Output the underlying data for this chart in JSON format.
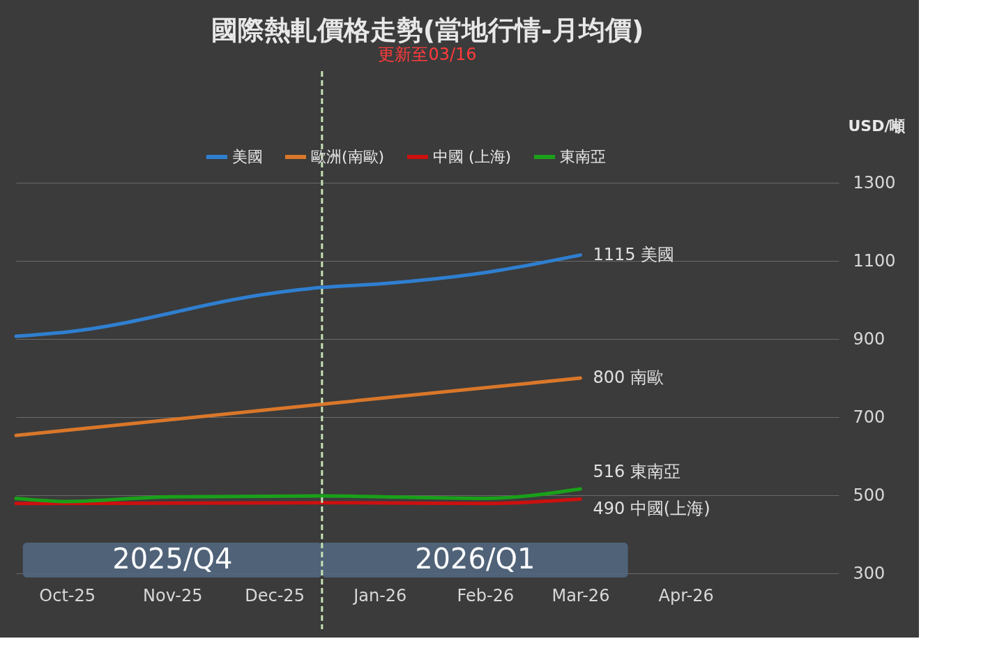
{
  "chart_data": {
    "type": "line",
    "title": "國際熱軋價格走勢(當地行情-月均價)",
    "subtitle": "更新至03/16",
    "ylabel": "USD/噸",
    "xlim": [
      "2025-09-16",
      "2026-05-16"
    ],
    "xticks": [
      {
        "value": "2025-10",
        "label": "Oct-25"
      },
      {
        "value": "2025-11",
        "label": "Nov-25"
      },
      {
        "value": "2025-12",
        "label": "Dec-25"
      },
      {
        "value": "2026-01",
        "label": "Jan-26"
      },
      {
        "value": "2026-02",
        "label": "Feb-26"
      },
      {
        "value": "2026-03",
        "label": "Mar-26"
      },
      {
        "value": "2026-04",
        "label": "Apr-26"
      }
    ],
    "ylim": [
      300,
      1300
    ],
    "yticks": [
      300,
      500,
      700,
      900,
      1100,
      1300
    ],
    "grid": "y",
    "legend": "top",
    "marker": "none",
    "line_style": "solid",
    "series": [
      {
        "name": "美國",
        "color": "#2f7fd0",
        "x": [
          "2025-09-16",
          "2025-10",
          "2025-12",
          "2025-12-15",
          "2026-01",
          "2026-02",
          "2026-03"
        ],
        "values": [
          907,
          918,
          1018,
          1032,
          1041,
          1070,
          1115
        ]
      },
      {
        "name": "歐洲(南歐)",
        "color": "#d9772a",
        "x": [
          "2025-09-16",
          "2025-12-15",
          "2026-03"
        ],
        "values": [
          653,
          733,
          800
        ]
      },
      {
        "name": "中國 (上海)",
        "color": "#cc1010",
        "x": [
          "2025-09-16",
          "2025-10",
          "2025-12-15",
          "2026-02",
          "2026-03"
        ],
        "values": [
          479,
          479,
          481,
          479,
          490
        ]
      },
      {
        "name": "東南亞",
        "color": "#1aa01a",
        "x": [
          "2025-09-16",
          "2025-10",
          "2025-11",
          "2025-12-15",
          "2026-02",
          "2026-03"
        ],
        "values": [
          492,
          484,
          496,
          498,
          492,
          516
        ]
      }
    ],
    "annotations": [
      {
        "text": "1115 美國",
        "x": "2026-03",
        "y": 1115
      },
      {
        "text": "800 南歐",
        "x": "2026-03",
        "y": 800
      },
      {
        "text": "516 東南亞",
        "x": "2026-03",
        "y": 516
      },
      {
        "text": "490 中國(上海)",
        "x": "2026-03",
        "y": 490
      }
    ],
    "ref_lines": [
      {
        "axis": "x",
        "value": "2025-12-15",
        "color": "#c5e0b4",
        "line_style": "dashed"
      }
    ],
    "bands": [
      {
        "axis": "x",
        "from": "2025-09-18",
        "to": "2025-12-15",
        "label": "2025/Q4",
        "color": "#52677f"
      },
      {
        "axis": "x",
        "from": "2025-12-15",
        "to": "2026-03-15",
        "label": "2026/Q1",
        "color": "#52677f"
      }
    ]
  }
}
